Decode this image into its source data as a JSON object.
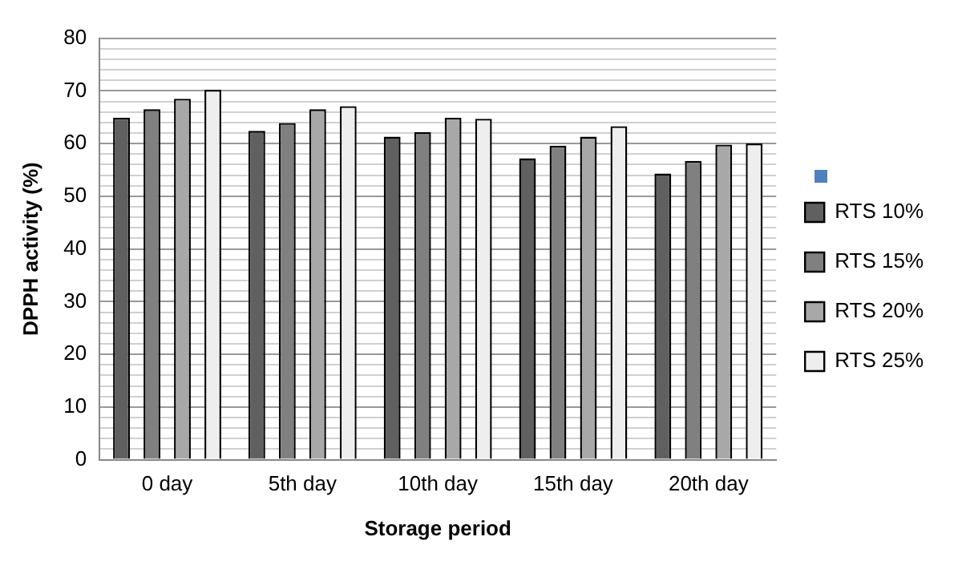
{
  "chart_data": {
    "type": "bar",
    "xlabel": "Storage period",
    "ylabel": "DPPH activity (%)",
    "categories": [
      "0 day",
      "5th day",
      "10th day",
      "15th day",
      "20th day"
    ],
    "series": [
      {
        "name": "RTS 10%",
        "color": "#606060",
        "values": [
          64.9,
          62.4,
          61.3,
          57.2,
          54.3
        ]
      },
      {
        "name": "RTS 15%",
        "color": "#808080",
        "values": [
          66.5,
          63.9,
          62.2,
          59.6,
          56.7
        ]
      },
      {
        "name": "RTS 20%",
        "color": "#a8a8a8",
        "values": [
          68.5,
          66.5,
          64.9,
          61.3,
          59.8
        ]
      },
      {
        "name": "RTS 25%",
        "color": "#eeeeee",
        "values": [
          70.2,
          67.1,
          64.7,
          63.3,
          60.0
        ]
      }
    ],
    "ylim": [
      0,
      80
    ],
    "yticks": [
      0,
      {
        "value": 2,
        "label": null
      },
      {
        "value": 4,
        "label": null
      },
      {
        "value": 6,
        "label": null
      },
      {
        "value": 8,
        "label": null
      },
      10,
      {
        "value": 12,
        "label": null
      },
      {
        "value": 14,
        "label": null
      },
      {
        "value": 16,
        "label": null
      },
      {
        "value": 18,
        "label": null
      },
      20,
      {
        "value": 22,
        "label": null
      },
      {
        "value": 24,
        "label": null
      },
      {
        "value": 26,
        "label": null
      },
      {
        "value": 28,
        "label": null
      },
      30,
      {
        "value": 32,
        "label": null
      },
      {
        "value": 34,
        "label": null
      },
      {
        "value": 36,
        "label": null
      },
      {
        "value": 38,
        "label": null
      },
      40,
      {
        "value": 42,
        "label": null
      },
      {
        "value": 44,
        "label": null
      },
      {
        "value": 46,
        "label": null
      },
      {
        "value": 48,
        "label": null
      },
      50,
      {
        "value": 52,
        "label": null
      },
      {
        "value": 54,
        "label": null
      },
      {
        "value": 56,
        "label": null
      },
      {
        "value": 58,
        "label": null
      },
      60,
      {
        "value": 62,
        "label": null
      },
      {
        "value": 64,
        "label": null
      },
      {
        "value": 66,
        "label": null
      },
      {
        "value": 68,
        "label": null
      },
      70,
      {
        "value": 72,
        "label": null
      },
      {
        "value": 74,
        "label": null
      },
      {
        "value": 76,
        "label": null
      },
      {
        "value": 78,
        "label": null
      },
      80
    ],
    "grid": "y",
    "legend": "right"
  }
}
